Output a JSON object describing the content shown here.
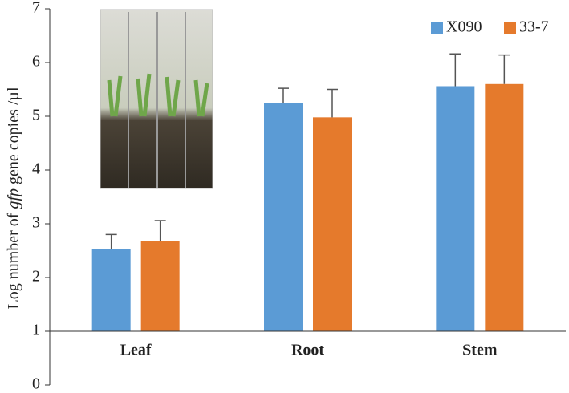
{
  "chart_data": {
    "type": "bar",
    "y_label": [
      "Log number of ",
      "gfp",
      " gene copies /µl"
    ],
    "categories": [
      "Leaf",
      "Root",
      "Stem"
    ],
    "series": [
      {
        "name": "X090",
        "color": "#5b9bd5",
        "values": [
          2.53,
          5.25,
          5.56
        ],
        "errors": [
          0.27,
          0.27,
          0.6
        ]
      },
      {
        "name": "33-7",
        "color": "#e57a2c",
        "values": [
          2.68,
          4.98,
          5.6
        ],
        "errors": [
          0.38,
          0.52,
          0.54
        ]
      }
    ],
    "ylim": [
      0,
      7
    ],
    "yticks": [
      0,
      1,
      2,
      3,
      4,
      5,
      6,
      7
    ],
    "x_axis_at": 1,
    "legend": "upper right"
  }
}
